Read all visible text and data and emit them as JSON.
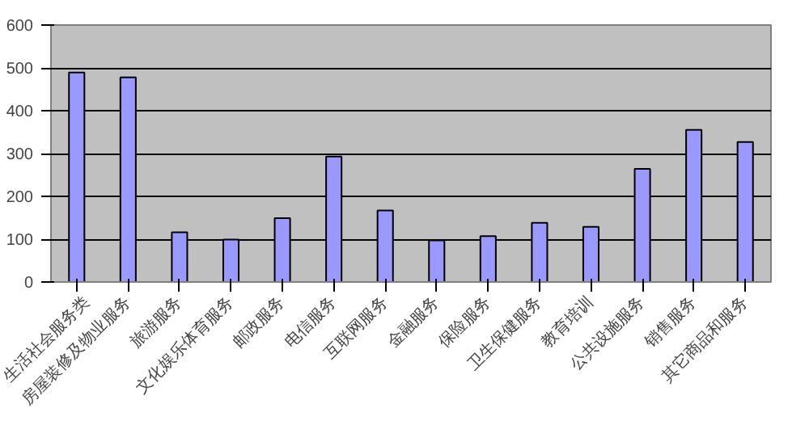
{
  "chart_data": {
    "type": "bar",
    "categories": [
      "生活社会服务类",
      "房屋装修及物业服务",
      "旅游服务",
      "文化娱乐体育服务",
      "邮政服务",
      "电信服务",
      "互联网服务",
      "金融服务",
      "保险服务",
      "卫生保健服务",
      "教育培训",
      "公共设施服务",
      "销售服务",
      "其它商品和服务"
    ],
    "values": [
      489,
      478,
      116,
      99,
      149,
      293,
      167,
      97,
      107,
      138,
      129,
      264,
      355,
      327
    ],
    "color": "#9999ff",
    "ylim": [
      0,
      600
    ],
    "yticks": [
      0,
      100,
      200,
      300,
      400,
      500,
      600
    ],
    "grid": "y"
  }
}
